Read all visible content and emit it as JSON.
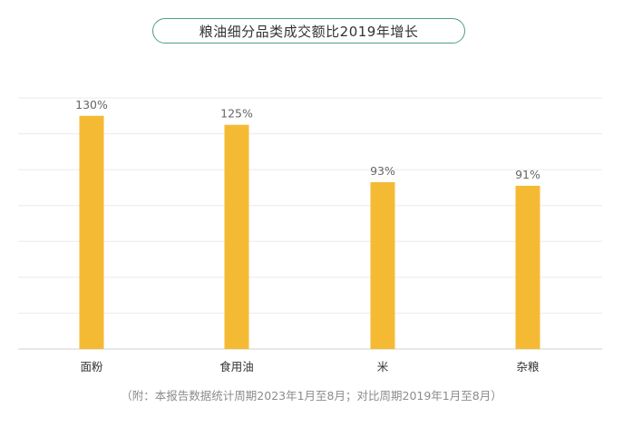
{
  "chart_title": "粮油细分品类成交额比2019年增长",
  "footnote": "（附：本报告数据统计周期2023年1月至8月；对比周期2019年1月至8月）",
  "colors": {
    "bar": "#F5BA34",
    "title_border": "#4F9E87",
    "grid": "#EBEBEB",
    "axis": "#D0D0D0",
    "text": "#333333",
    "label": "#666666"
  },
  "chart_data": {
    "type": "bar",
    "title": "粮油细分品类成交额比2019年增长",
    "categories": [
      "面粉",
      "食用油",
      "米",
      "杂粮"
    ],
    "values": [
      130,
      125,
      93,
      91
    ],
    "value_labels": [
      "130%",
      "125%",
      "93%",
      "91%"
    ],
    "ylim": [
      0,
      140
    ],
    "grid": true,
    "xlabel": "",
    "ylabel": ""
  }
}
